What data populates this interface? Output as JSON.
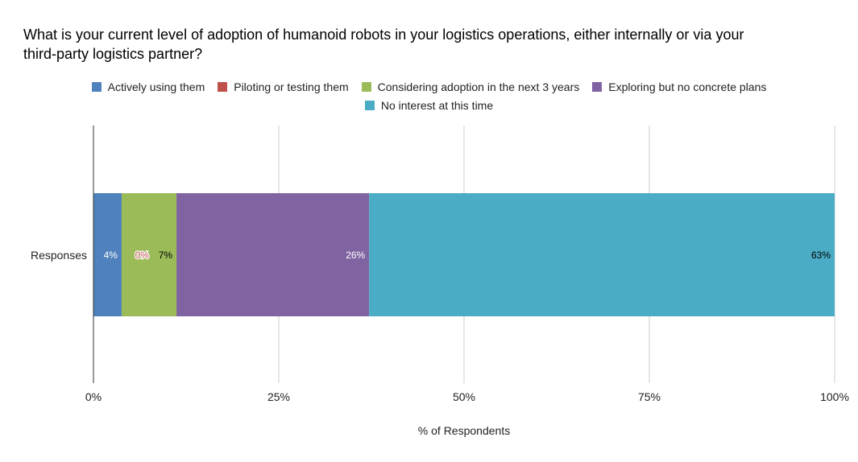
{
  "chart_data": {
    "type": "bar",
    "orientation": "horizontal",
    "stacked": "percent",
    "title": "What is your current level of adoption of humanoid robots in your logistics operations, either internally or via your third-party logistics partner?",
    "title_lines": [
      "What is your current level of adoption of humanoid robots in your logistics operations, either internally or via your",
      "third-party logistics partner?"
    ],
    "categories": [
      "Responses"
    ],
    "xlabel": "% of Respondents",
    "ylabel": "",
    "xlim": [
      0,
      100
    ],
    "xticks": [
      0,
      25,
      50,
      75,
      100
    ],
    "xtick_labels": [
      "0%",
      "25%",
      "50%",
      "75%",
      "100%"
    ],
    "grid": true,
    "legend_position": "top",
    "series": [
      {
        "name": "Actively using them",
        "values": [
          3.8
        ],
        "label": "4%",
        "color": "#4f81bd",
        "label_color": "#ffffff"
      },
      {
        "name": "Piloting or testing them",
        "values": [
          0
        ],
        "label": "0%",
        "color": "#c0504d",
        "label_color": "#c0504d"
      },
      {
        "name": "Considering adoption in the next 3 years",
        "values": [
          7.4
        ],
        "label": "7%",
        "color": "#9bbb59",
        "label_color": "#000000"
      },
      {
        "name": "Exploring but no concrete plans",
        "values": [
          26.0
        ],
        "label": "26%",
        "color": "#8064a2",
        "label_color": "#ffffff"
      },
      {
        "name": "No interest at this time",
        "values": [
          62.8
        ],
        "label": "63%",
        "color": "#4bacc6",
        "label_color": "#000000"
      }
    ]
  }
}
